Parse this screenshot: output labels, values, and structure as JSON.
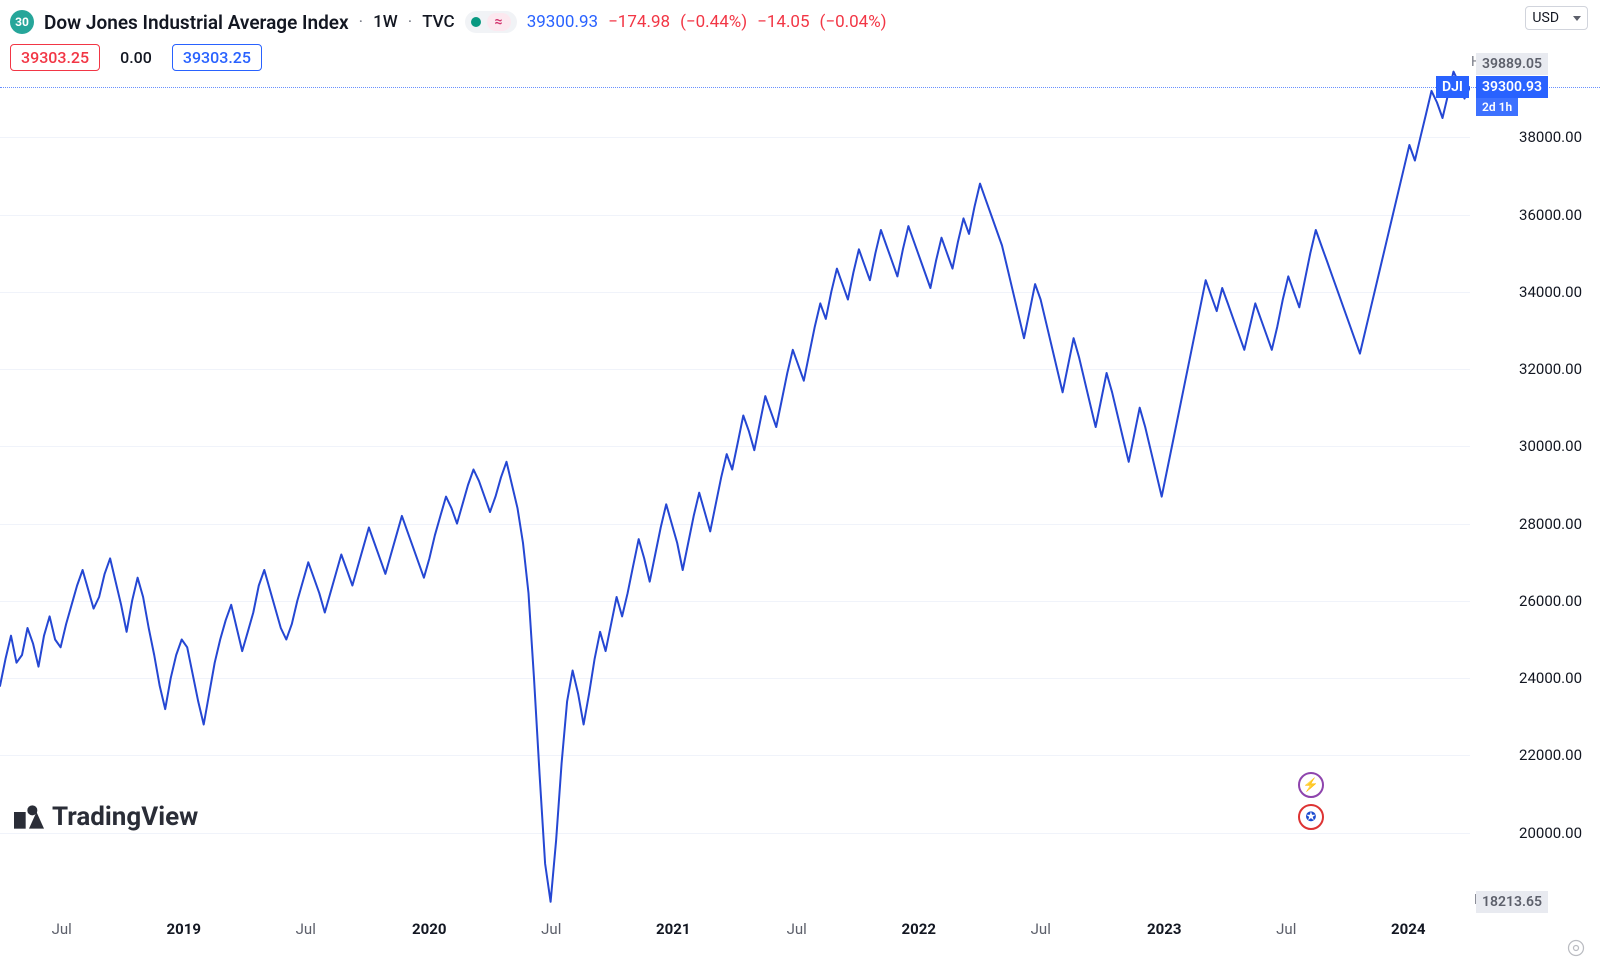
{
  "header": {
    "symbol_badge": "30",
    "title": "Dow Jones Industrial Average Index",
    "interval": "1W",
    "source": "TVC",
    "status_approx": "≈",
    "last": "39300.93",
    "chg_abs": "−174.98",
    "chg_pct": "(−0.44%)",
    "chg2_abs": "−14.05",
    "chg2_pct": "(−0.04%)",
    "currency": "USD"
  },
  "pills": {
    "red": "39303.25",
    "mid": "0.00",
    "blue": "39303.25"
  },
  "chart": {
    "type": "line",
    "line_color": "#2547d3",
    "line_width": 2,
    "background": "#ffffff",
    "grid_color": "#f0f3fa",
    "ymin": 18000,
    "ymax": 40000,
    "yticks": [
      20000,
      22000,
      24000,
      26000,
      28000,
      30000,
      32000,
      34000,
      36000,
      38000
    ],
    "ytick_labels": [
      "20000.00",
      "22000.00",
      "24000.00",
      "26000.00",
      "28000.00",
      "30000.00",
      "32000.00",
      "34000.00",
      "36000.00",
      "38000.00"
    ],
    "x_start": "2018-04",
    "x_end": "2024-04",
    "xticks": [
      {
        "t": 0.042,
        "label": "Jul",
        "bold": false
      },
      {
        "t": 0.125,
        "label": "2019",
        "bold": true
      },
      {
        "t": 0.208,
        "label": "Jul",
        "bold": false
      },
      {
        "t": 0.292,
        "label": "2020",
        "bold": true
      },
      {
        "t": 0.375,
        "label": "Jul",
        "bold": false
      },
      {
        "t": 0.458,
        "label": "2021",
        "bold": true
      },
      {
        "t": 0.542,
        "label": "Jul",
        "bold": false
      },
      {
        "t": 0.625,
        "label": "2022",
        "bold": true
      },
      {
        "t": 0.708,
        "label": "Jul",
        "bold": false
      },
      {
        "t": 0.792,
        "label": "2023",
        "bold": true
      },
      {
        "t": 0.875,
        "label": "Jul",
        "bold": false
      },
      {
        "t": 0.958,
        "label": "2024",
        "bold": true
      }
    ],
    "high": {
      "label": "High",
      "value": "39889.05",
      "y": 39889.05
    },
    "low": {
      "label": "Low",
      "value": "18213.65",
      "y": 18213.65
    },
    "current": {
      "label": "DJI",
      "value": "39300.93",
      "sub": "2d 1h",
      "y": 39300.93
    },
    "series": [
      23800,
      24500,
      25100,
      24400,
      24600,
      25300,
      24900,
      24300,
      25100,
      25600,
      25000,
      24800,
      25400,
      25900,
      26400,
      26800,
      26300,
      25800,
      26100,
      26700,
      27100,
      26500,
      25900,
      25200,
      26000,
      26600,
      26100,
      25300,
      24600,
      23800,
      23200,
      24000,
      24600,
      25000,
      24800,
      24100,
      23400,
      22800,
      23600,
      24400,
      25000,
      25500,
      25900,
      25300,
      24700,
      25200,
      25700,
      26400,
      26800,
      26300,
      25800,
      25300,
      25000,
      25400,
      26000,
      26500,
      27000,
      26600,
      26200,
      25700,
      26200,
      26700,
      27200,
      26800,
      26400,
      26900,
      27400,
      27900,
      27500,
      27100,
      26700,
      27200,
      27700,
      28200,
      27800,
      27400,
      27000,
      26600,
      27100,
      27700,
      28200,
      28700,
      28400,
      28000,
      28500,
      29000,
      29400,
      29100,
      28700,
      28300,
      28700,
      29200,
      29600,
      29000,
      28400,
      27500,
      26200,
      24000,
      21500,
      19200,
      18213,
      19800,
      21800,
      23400,
      24200,
      23600,
      22800,
      23600,
      24500,
      25200,
      24700,
      25400,
      26100,
      25600,
      26200,
      26900,
      27600,
      27100,
      26500,
      27200,
      27900,
      28500,
      28000,
      27500,
      26800,
      27500,
      28200,
      28800,
      28300,
      27800,
      28500,
      29200,
      29800,
      29400,
      30100,
      30800,
      30400,
      29900,
      30600,
      31300,
      30900,
      30500,
      31200,
      31900,
      32500,
      32100,
      31700,
      32400,
      33100,
      33700,
      33300,
      34000,
      34600,
      34200,
      33800,
      34500,
      35100,
      34700,
      34300,
      35000,
      35600,
      35200,
      34800,
      34400,
      35100,
      35700,
      35300,
      34900,
      34500,
      34100,
      34800,
      35400,
      35000,
      34600,
      35300,
      35900,
      35500,
      36200,
      36800,
      36400,
      36000,
      35600,
      35200,
      34600,
      34000,
      33400,
      32800,
      33500,
      34200,
      33800,
      33200,
      32600,
      32000,
      31400,
      32100,
      32800,
      32300,
      31700,
      31100,
      30500,
      31200,
      31900,
      31400,
      30800,
      30200,
      29600,
      30300,
      31000,
      30500,
      29900,
      29300,
      28700,
      29400,
      30100,
      30800,
      31500,
      32200,
      32900,
      33600,
      34300,
      33900,
      33500,
      34100,
      33700,
      33300,
      32900,
      32500,
      33100,
      33700,
      33300,
      32900,
      32500,
      33100,
      33800,
      34400,
      34000,
      33600,
      34300,
      35000,
      35600,
      35200,
      34800,
      34400,
      34000,
      33600,
      33200,
      32800,
      32400,
      33000,
      33600,
      34200,
      34800,
      35400,
      36000,
      36600,
      37200,
      37800,
      37400,
      38000,
      38600,
      39200,
      38900,
      38500,
      39100,
      39700,
      39400,
      39000,
      39300
    ]
  },
  "watermark": "TradingView"
}
